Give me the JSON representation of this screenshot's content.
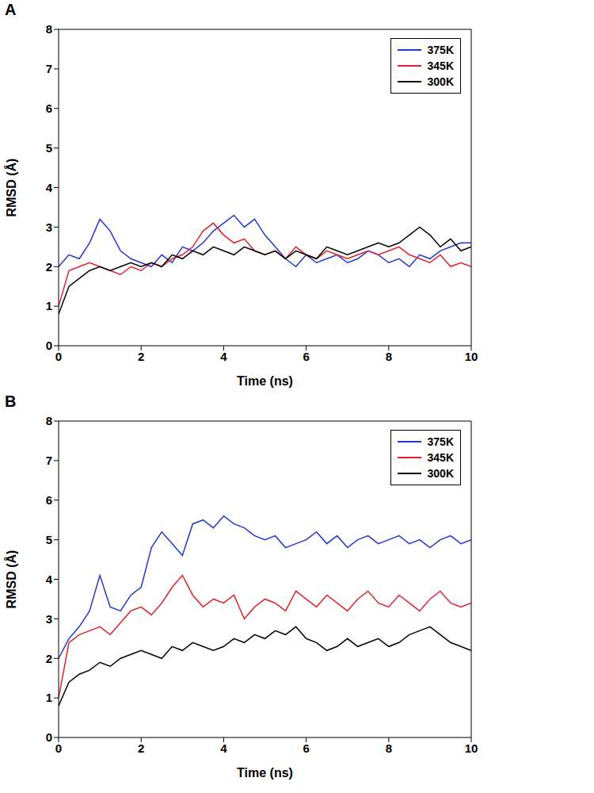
{
  "chart_data": [
    {
      "type": "line",
      "panel_label": "A",
      "x_label": "Time (ns)",
      "y_label": "RMSD (Å)",
      "xlim": [
        0,
        10
      ],
      "xticks": [
        0,
        2,
        4,
        6,
        8,
        10
      ],
      "ylim": [
        0,
        8
      ],
      "yticks": [
        0,
        1,
        2,
        3,
        4,
        5,
        6,
        7,
        8
      ],
      "grid": false,
      "legend": "upper right",
      "x": [
        0,
        0.25,
        0.5,
        0.75,
        1,
        1.25,
        1.5,
        1.75,
        2,
        2.25,
        2.5,
        2.75,
        3,
        3.25,
        3.5,
        3.75,
        4,
        4.25,
        4.5,
        4.75,
        5,
        5.25,
        5.5,
        5.75,
        6,
        6.25,
        6.5,
        6.75,
        7,
        7.25,
        7.5,
        7.75,
        8,
        8.25,
        8.5,
        8.75,
        9,
        9.25,
        9.5,
        9.75,
        10
      ],
      "series": [
        {
          "name": "375K",
          "color": "#2236d4",
          "values": [
            2.0,
            2.3,
            2.2,
            2.6,
            3.2,
            2.9,
            2.4,
            2.2,
            2.1,
            2.0,
            2.3,
            2.1,
            2.5,
            2.4,
            2.6,
            2.9,
            3.1,
            3.3,
            3.0,
            3.2,
            2.8,
            2.5,
            2.2,
            2.0,
            2.3,
            2.1,
            2.2,
            2.3,
            2.1,
            2.2,
            2.4,
            2.3,
            2.1,
            2.2,
            2.0,
            2.3,
            2.2,
            2.4,
            2.5,
            2.6,
            2.6
          ]
        },
        {
          "name": "345K",
          "color": "#e3202c",
          "values": [
            1.0,
            1.9,
            2.0,
            2.1,
            2.0,
            1.9,
            1.8,
            2.0,
            1.9,
            2.1,
            2.0,
            2.2,
            2.3,
            2.5,
            2.9,
            3.1,
            2.8,
            2.6,
            2.7,
            2.4,
            2.3,
            2.4,
            2.2,
            2.5,
            2.3,
            2.2,
            2.4,
            2.3,
            2.2,
            2.3,
            2.4,
            2.3,
            2.4,
            2.5,
            2.3,
            2.2,
            2.1,
            2.3,
            2.0,
            2.1,
            2.0
          ]
        },
        {
          "name": "300K",
          "color": "#000000",
          "values": [
            0.8,
            1.5,
            1.7,
            1.9,
            2.0,
            1.9,
            2.0,
            2.1,
            2.0,
            2.1,
            2.0,
            2.3,
            2.2,
            2.4,
            2.3,
            2.5,
            2.4,
            2.3,
            2.5,
            2.4,
            2.3,
            2.4,
            2.2,
            2.4,
            2.3,
            2.2,
            2.5,
            2.4,
            2.3,
            2.4,
            2.5,
            2.6,
            2.5,
            2.6,
            2.8,
            3.0,
            2.8,
            2.5,
            2.7,
            2.4,
            2.5
          ]
        }
      ]
    },
    {
      "type": "line",
      "panel_label": "B",
      "x_label": "Time (ns)",
      "y_label": "RMSD (Å)",
      "xlim": [
        0,
        10
      ],
      "xticks": [
        0,
        2,
        4,
        6,
        8,
        10
      ],
      "ylim": [
        0,
        8
      ],
      "yticks": [
        0,
        1,
        2,
        3,
        4,
        5,
        6,
        7,
        8
      ],
      "grid": false,
      "legend": "upper right",
      "x": [
        0,
        0.25,
        0.5,
        0.75,
        1,
        1.25,
        1.5,
        1.75,
        2,
        2.25,
        2.5,
        2.75,
        3,
        3.25,
        3.5,
        3.75,
        4,
        4.25,
        4.5,
        4.75,
        5,
        5.25,
        5.5,
        5.75,
        6,
        6.25,
        6.5,
        6.75,
        7,
        7.25,
        7.5,
        7.75,
        8,
        8.25,
        8.5,
        8.75,
        9,
        9.25,
        9.5,
        9.75,
        10
      ],
      "series": [
        {
          "name": "375K",
          "color": "#2236d4",
          "values": [
            2.0,
            2.5,
            2.8,
            3.2,
            4.1,
            3.3,
            3.2,
            3.6,
            3.8,
            4.8,
            5.2,
            4.9,
            4.6,
            5.4,
            5.5,
            5.3,
            5.6,
            5.4,
            5.3,
            5.1,
            5.0,
            5.1,
            4.8,
            4.9,
            5.0,
            5.2,
            4.9,
            5.1,
            4.8,
            5.0,
            5.1,
            4.9,
            5.0,
            5.1,
            4.9,
            5.0,
            4.8,
            5.0,
            5.1,
            4.9,
            5.0
          ]
        },
        {
          "name": "345K",
          "color": "#e3202c",
          "values": [
            1.0,
            2.4,
            2.6,
            2.7,
            2.8,
            2.6,
            2.9,
            3.2,
            3.3,
            3.1,
            3.4,
            3.8,
            4.1,
            3.6,
            3.3,
            3.5,
            3.4,
            3.6,
            3.0,
            3.3,
            3.5,
            3.4,
            3.2,
            3.7,
            3.5,
            3.3,
            3.6,
            3.4,
            3.2,
            3.5,
            3.7,
            3.4,
            3.3,
            3.6,
            3.4,
            3.2,
            3.5,
            3.7,
            3.4,
            3.3,
            3.4
          ]
        },
        {
          "name": "300K",
          "color": "#000000",
          "values": [
            0.8,
            1.4,
            1.6,
            1.7,
            1.9,
            1.8,
            2.0,
            2.1,
            2.2,
            2.1,
            2.0,
            2.3,
            2.2,
            2.4,
            2.3,
            2.2,
            2.3,
            2.5,
            2.4,
            2.6,
            2.5,
            2.7,
            2.6,
            2.8,
            2.5,
            2.4,
            2.2,
            2.3,
            2.5,
            2.3,
            2.4,
            2.5,
            2.3,
            2.4,
            2.6,
            2.7,
            2.8,
            2.6,
            2.4,
            2.3,
            2.2
          ]
        }
      ]
    }
  ]
}
